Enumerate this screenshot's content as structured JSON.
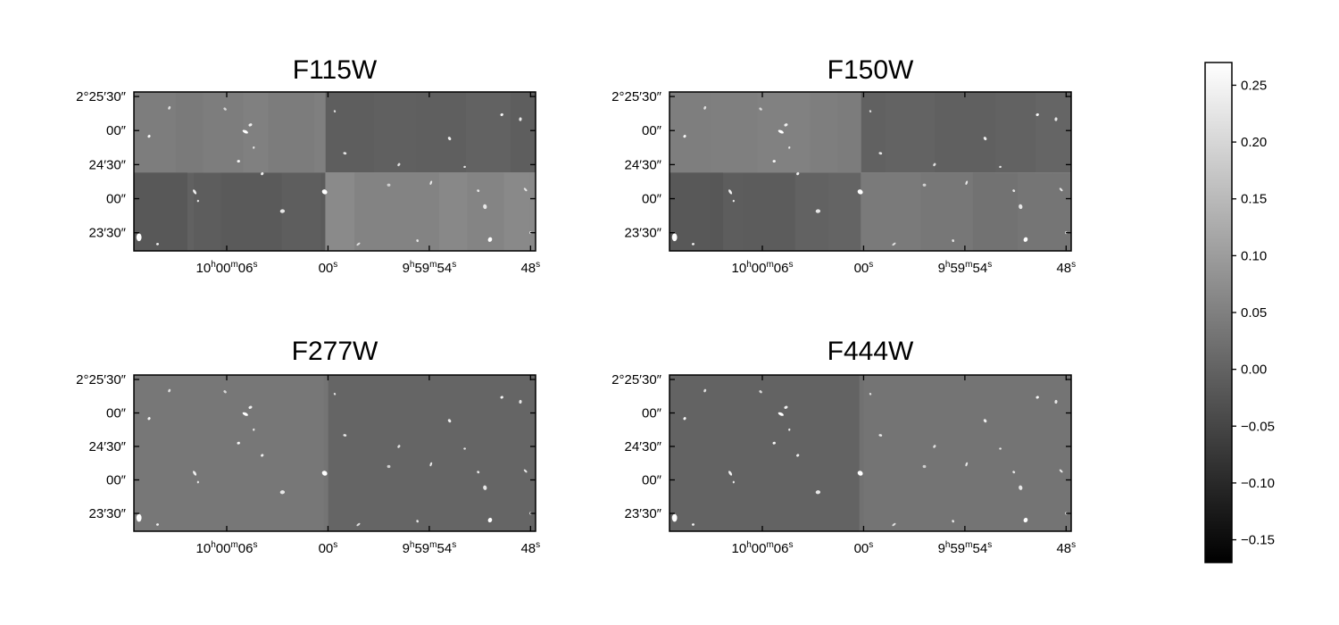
{
  "chart_data": {
    "type": "heatmap",
    "colormap": "gray",
    "colorbar": {
      "range": [
        -0.17,
        0.27
      ],
      "ticks": [
        {
          "value": 0.25,
          "label": "0.25"
        },
        {
          "value": 0.2,
          "label": "0.20"
        },
        {
          "value": 0.15,
          "label": "0.15"
        },
        {
          "value": 0.1,
          "label": "0.10"
        },
        {
          "value": 0.05,
          "label": "0.05"
        },
        {
          "value": 0.0,
          "label": "0.00"
        },
        {
          "value": -0.05,
          "label": "−0.05"
        },
        {
          "value": -0.1,
          "label": "−0.10"
        },
        {
          "value": -0.15,
          "label": "−0.15"
        }
      ]
    },
    "axes": {
      "ra_ticks": [
        {
          "sec": 6,
          "main": "10",
          "u1": "h",
          "mid": "00",
          "u2": "m",
          "end": "06",
          "u3": "s"
        },
        {
          "sec": 0,
          "main": "",
          "u1": "",
          "mid": "",
          "u2": "",
          "end": "00",
          "u3": "s"
        },
        {
          "sec": -6,
          "main": "9",
          "u1": "h",
          "mid": "59",
          "u2": "m",
          "end": "54",
          "u3": "s"
        },
        {
          "sec": -12,
          "main": "",
          "u1": "",
          "mid": "",
          "u2": "",
          "end": "48",
          "u3": "s"
        }
      ],
      "ra_range_sec": [
        11.5,
        -12.3
      ],
      "dec_ticks": [
        {
          "arcsec": 90,
          "label": "2°25′30″"
        },
        {
          "arcsec": 60,
          "label": "00″"
        },
        {
          "arcsec": 30,
          "label": "24′30″"
        },
        {
          "arcsec": 0,
          "label": "00″"
        },
        {
          "arcsec": -30,
          "label": "23′30″"
        }
      ],
      "dec_range_arcsec": [
        -46,
        94
      ]
    },
    "panels": [
      {
        "title": "F115W",
        "pattern": "tiled",
        "quadrant_levels": {
          "top_left": 0.045,
          "top_right": 0.0,
          "bottom_left": -0.01,
          "bottom_right": 0.06
        }
      },
      {
        "title": "F150W",
        "pattern": "tiled",
        "quadrant_levels": {
          "top_left": 0.05,
          "top_right": 0.0,
          "bottom_left": -0.005,
          "bottom_right": 0.035
        }
      },
      {
        "title": "F277W",
        "pattern": "halves",
        "half_levels": {
          "left": 0.035,
          "right": 0.005
        }
      },
      {
        "title": "F444W",
        "pattern": "halves",
        "half_levels": {
          "left": 0.0,
          "right": 0.03
        }
      }
    ],
    "sources": [
      {
        "ra": 11.2,
        "dec": -34,
        "f": 1.0,
        "s": 1.3
      },
      {
        "ra": 10.6,
        "dec": 55,
        "f": 0.9,
        "s": 0.9
      },
      {
        "ra": 10.1,
        "dec": -40,
        "f": 0.8,
        "s": 0.8
      },
      {
        "ra": 9.4,
        "dec": 80,
        "f": 0.6,
        "s": 0.7
      },
      {
        "ra": 7.9,
        "dec": 6,
        "f": 0.8,
        "s": 0.9
      },
      {
        "ra": 7.7,
        "dec": -2,
        "f": 0.7,
        "s": 0.7
      },
      {
        "ra": 6.1,
        "dec": 79,
        "f": 0.5,
        "s": 0.7
      },
      {
        "ra": 5.3,
        "dec": 33,
        "f": 0.9,
        "s": 0.9
      },
      {
        "ra": 4.9,
        "dec": 59,
        "f": 1.0,
        "s": 1.0
      },
      {
        "ra": 4.6,
        "dec": 65,
        "f": 0.8,
        "s": 0.8
      },
      {
        "ra": 4.4,
        "dec": 45,
        "f": 0.7,
        "s": 0.7
      },
      {
        "ra": 3.9,
        "dec": 22,
        "f": 0.8,
        "s": 0.9
      },
      {
        "ra": 2.7,
        "dec": -11,
        "f": 0.7,
        "s": 0.8
      },
      {
        "ra": 0.2,
        "dec": 6,
        "f": 1.0,
        "s": 1.6
      },
      {
        "ra": -0.4,
        "dec": 77,
        "f": 0.6,
        "s": 0.7
      },
      {
        "ra": -1.0,
        "dec": 40,
        "f": 0.7,
        "s": 0.7
      },
      {
        "ra": -1.8,
        "dec": -40,
        "f": 0.6,
        "s": 0.7
      },
      {
        "ra": -3.6,
        "dec": 12,
        "f": 0.4,
        "s": 1.0
      },
      {
        "ra": -4.2,
        "dec": 30,
        "f": 0.6,
        "s": 0.7
      },
      {
        "ra": -5.3,
        "dec": -37,
        "f": 0.7,
        "s": 0.8
      },
      {
        "ra": -6.1,
        "dec": 14,
        "f": 0.7,
        "s": 0.7
      },
      {
        "ra": -7.2,
        "dec": 53,
        "f": 0.8,
        "s": 0.8
      },
      {
        "ra": -8.1,
        "dec": 28,
        "f": 0.7,
        "s": 0.7
      },
      {
        "ra": -8.9,
        "dec": 7,
        "f": 0.7,
        "s": 0.8
      },
      {
        "ra": -9.3,
        "dec": -7,
        "f": 0.7,
        "s": 0.8
      },
      {
        "ra": -9.6,
        "dec": -36,
        "f": 1.0,
        "s": 1.4
      },
      {
        "ra": -10.3,
        "dec": 74,
        "f": 0.9,
        "s": 0.9
      },
      {
        "ra": -11.4,
        "dec": 70,
        "f": 0.7,
        "s": 0.8
      },
      {
        "ra": -11.7,
        "dec": 8,
        "f": 0.7,
        "s": 0.7
      },
      {
        "ra": -12.0,
        "dec": -30,
        "f": 0.6,
        "s": 0.8
      }
    ]
  }
}
